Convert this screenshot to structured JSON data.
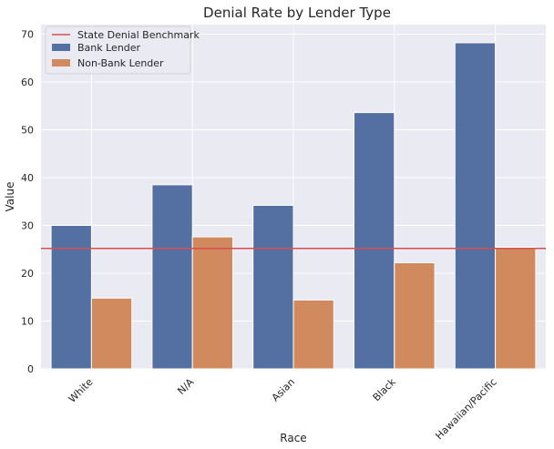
{
  "chart_data": {
    "type": "bar",
    "title": "Denial Rate by Lender Type",
    "xlabel": "Race",
    "ylabel": "Value",
    "categories": [
      "White",
      "N/A",
      "Asian",
      "Black",
      "Hawaiian/Pacific"
    ],
    "series": [
      {
        "name": "Bank Lender",
        "values": [
          30.0,
          38.5,
          34.2,
          53.6,
          68.2
        ],
        "color": "#5470a3"
      },
      {
        "name": "Non-Bank Lender",
        "values": [
          14.8,
          27.6,
          14.4,
          22.2,
          25.4
        ],
        "color": "#d08a5e"
      }
    ],
    "reference_line": {
      "name": "State Denial Benchmark",
      "value": 25.2,
      "color": "#d64f4f"
    },
    "ylim": [
      0,
      72
    ],
    "yticks": [
      0,
      10,
      20,
      30,
      40,
      50,
      60,
      70
    ],
    "grid": true,
    "legend_position": "top-left",
    "background": "#eaeaf2"
  }
}
